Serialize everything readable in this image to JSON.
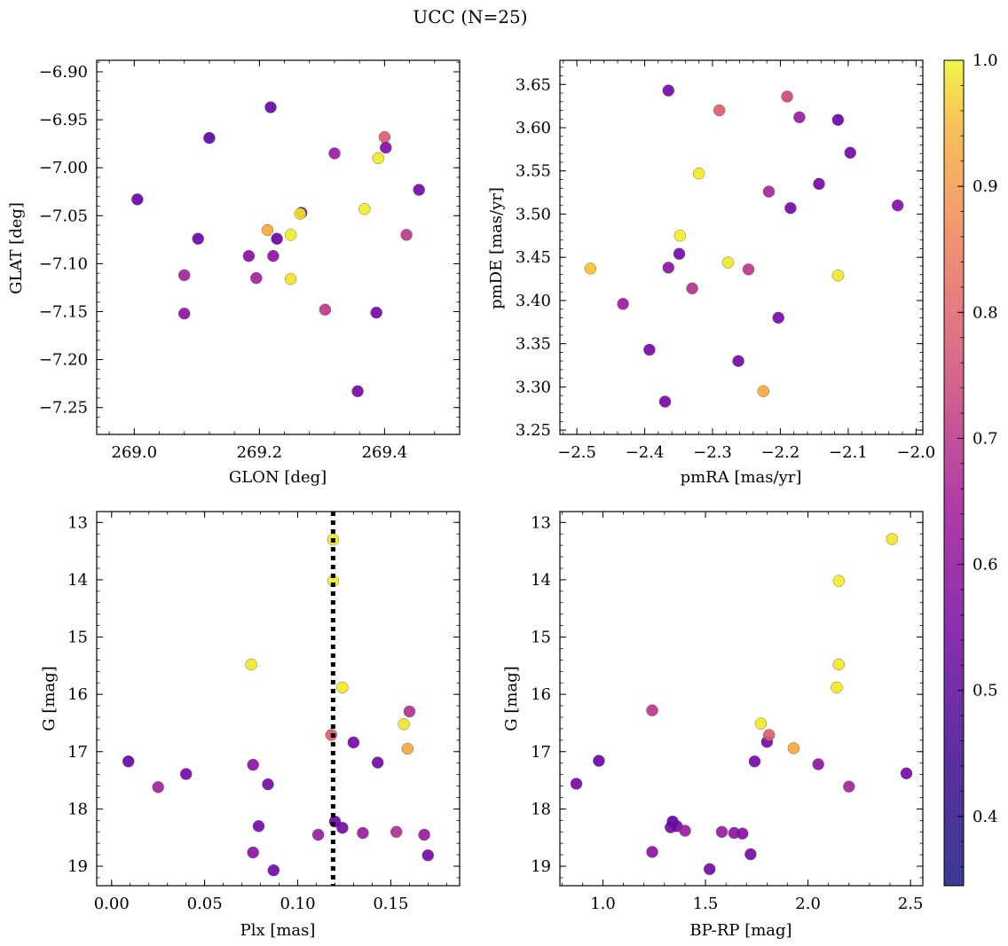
{
  "figure": {
    "title": "UCC (N=25)"
  },
  "colorbar": {
    "min": 0.345,
    "max": 1.0,
    "ticks": [
      {
        "v": 0.4,
        "label": "0.4"
      },
      {
        "v": 0.5,
        "label": "0.5"
      },
      {
        "v": 0.6,
        "label": "0.6"
      },
      {
        "v": 0.7,
        "label": "0.7"
      },
      {
        "v": 0.8,
        "label": "0.8"
      },
      {
        "v": 0.9,
        "label": "0.9"
      },
      {
        "v": 1.0,
        "label": "1.0"
      }
    ],
    "colormap": "plasma"
  },
  "chart_data": [
    {
      "type": "scatter",
      "xlabel": "GLON [deg]",
      "ylabel": "GLAT [deg]",
      "xlim": [
        268.94,
        269.52
      ],
      "ylim": [
        -7.278,
        -6.888
      ],
      "xticks": [
        {
          "v": 269.0,
          "label": "269.0"
        },
        {
          "v": 269.2,
          "label": "269.2"
        },
        {
          "v": 269.4,
          "label": "269.4"
        }
      ],
      "yticks": [
        {
          "v": -6.9,
          "label": "−6.90"
        },
        {
          "v": -6.95,
          "label": "−6.95"
        },
        {
          "v": -7.0,
          "label": "−7.00"
        },
        {
          "v": -7.05,
          "label": "−7.05"
        },
        {
          "v": -7.1,
          "label": "−7.10"
        },
        {
          "v": -7.15,
          "label": "−7.15"
        },
        {
          "v": -7.2,
          "label": "−7.20"
        },
        {
          "v": -7.25,
          "label": "−7.25"
        }
      ],
      "points": [
        {
          "x": 269.005,
          "y": -7.033,
          "c": 0.4
        },
        {
          "x": 269.12,
          "y": -6.969,
          "c": 0.38
        },
        {
          "x": 269.218,
          "y": -6.937,
          "c": 0.4
        },
        {
          "x": 269.102,
          "y": -7.074,
          "c": 0.4
        },
        {
          "x": 269.08,
          "y": -7.112,
          "c": 0.52
        },
        {
          "x": 269.08,
          "y": -7.152,
          "c": 0.48
        },
        {
          "x": 269.183,
          "y": -7.092,
          "c": 0.46
        },
        {
          "x": 269.195,
          "y": -7.115,
          "c": 0.52
        },
        {
          "x": 269.213,
          "y": -7.065,
          "c": 0.85
        },
        {
          "x": 269.228,
          "y": -7.074,
          "c": 0.4
        },
        {
          "x": 269.222,
          "y": -7.092,
          "c": 0.48
        },
        {
          "x": 269.25,
          "y": -7.07,
          "c": 0.98
        },
        {
          "x": 269.25,
          "y": -7.116,
          "c": 0.96
        },
        {
          "x": 269.267,
          "y": -7.047,
          "c": 0.4
        },
        {
          "x": 269.265,
          "y": -7.048,
          "c": 0.97
        },
        {
          "x": 269.305,
          "y": -7.148,
          "c": 0.58
        },
        {
          "x": 269.32,
          "y": -6.985,
          "c": 0.5
        },
        {
          "x": 269.357,
          "y": -7.233,
          "c": 0.42
        },
        {
          "x": 269.368,
          "y": -7.043,
          "c": 0.98
        },
        {
          "x": 269.387,
          "y": -7.151,
          "c": 0.42
        },
        {
          "x": 269.39,
          "y": -6.99,
          "c": 0.97
        },
        {
          "x": 269.4,
          "y": -6.968,
          "c": 0.68
        },
        {
          "x": 269.402,
          "y": -6.979,
          "c": 0.45
        },
        {
          "x": 269.435,
          "y": -7.07,
          "c": 0.58
        },
        {
          "x": 269.455,
          "y": -7.023,
          "c": 0.42
        }
      ]
    },
    {
      "type": "scatter",
      "xlabel": "pmRA [mas/yr]",
      "ylabel": "pmDE [mas/yr]",
      "xlim": [
        -2.525,
        -1.99
      ],
      "ylim": [
        3.245,
        3.678
      ],
      "xticks": [
        {
          "v": -2.5,
          "label": "−2.5"
        },
        {
          "v": -2.4,
          "label": "−2.4"
        },
        {
          "v": -2.3,
          "label": "−2.3"
        },
        {
          "v": -2.2,
          "label": "−2.2"
        },
        {
          "v": -2.1,
          "label": "−2.1"
        },
        {
          "v": -2.0,
          "label": "−2.0"
        }
      ],
      "yticks": [
        {
          "v": 3.25,
          "label": "3.25"
        },
        {
          "v": 3.3,
          "label": "3.30"
        },
        {
          "v": 3.35,
          "label": "3.35"
        },
        {
          "v": 3.4,
          "label": "3.40"
        },
        {
          "v": 3.45,
          "label": "3.45"
        },
        {
          "v": 3.5,
          "label": "3.50"
        },
        {
          "v": 3.55,
          "label": "3.55"
        },
        {
          "v": 3.6,
          "label": "3.60"
        },
        {
          "v": 3.65,
          "label": "3.65"
        }
      ],
      "points": [
        {
          "x": -2.48,
          "y": 3.437,
          "c": 0.9
        },
        {
          "x": -2.432,
          "y": 3.396,
          "c": 0.5
        },
        {
          "x": -2.393,
          "y": 3.343,
          "c": 0.42
        },
        {
          "x": -2.37,
          "y": 3.283,
          "c": 0.42
        },
        {
          "x": -2.365,
          "y": 3.643,
          "c": 0.42
        },
        {
          "x": -2.365,
          "y": 3.438,
          "c": 0.48
        },
        {
          "x": -2.348,
          "y": 3.475,
          "c": 0.98
        },
        {
          "x": -2.349,
          "y": 3.454,
          "c": 0.42
        },
        {
          "x": -2.33,
          "y": 3.414,
          "c": 0.56
        },
        {
          "x": -2.32,
          "y": 3.547,
          "c": 0.97
        },
        {
          "x": -2.29,
          "y": 3.62,
          "c": 0.68
        },
        {
          "x": -2.277,
          "y": 3.444,
          "c": 0.97
        },
        {
          "x": -2.262,
          "y": 3.33,
          "c": 0.42
        },
        {
          "x": -2.247,
          "y": 3.436,
          "c": 0.58
        },
        {
          "x": -2.225,
          "y": 3.295,
          "c": 0.85
        },
        {
          "x": -2.217,
          "y": 3.526,
          "c": 0.53
        },
        {
          "x": -2.203,
          "y": 3.38,
          "c": 0.43
        },
        {
          "x": -2.19,
          "y": 3.636,
          "c": 0.62
        },
        {
          "x": -2.185,
          "y": 3.507,
          "c": 0.42
        },
        {
          "x": -2.172,
          "y": 3.612,
          "c": 0.5
        },
        {
          "x": -2.143,
          "y": 3.535,
          "c": 0.42
        },
        {
          "x": -2.115,
          "y": 3.609,
          "c": 0.4
        },
        {
          "x": -2.115,
          "y": 3.429,
          "c": 0.97
        },
        {
          "x": -2.097,
          "y": 3.571,
          "c": 0.42
        },
        {
          "x": -2.027,
          "y": 3.51,
          "c": 0.45
        }
      ]
    },
    {
      "type": "scatter",
      "xlabel": "Plx [mas]",
      "ylabel": "G [mag]",
      "xlim": [
        -0.008,
        0.187
      ],
      "ylim": [
        19.34,
        12.81
      ],
      "xticks": [
        {
          "v": 0.0,
          "label": "0.00"
        },
        {
          "v": 0.05,
          "label": "0.05"
        },
        {
          "v": 0.1,
          "label": "0.10"
        },
        {
          "v": 0.15,
          "label": "0.15"
        }
      ],
      "yticks": [
        {
          "v": 13,
          "label": "13"
        },
        {
          "v": 14,
          "label": "14"
        },
        {
          "v": 15,
          "label": "15"
        },
        {
          "v": 16,
          "label": "16"
        },
        {
          "v": 17,
          "label": "17"
        },
        {
          "v": 18,
          "label": "18"
        },
        {
          "v": 19,
          "label": "19"
        }
      ],
      "vline": 0.119,
      "points": [
        {
          "x": 0.009,
          "y": 17.17,
          "c": 0.4
        },
        {
          "x": 0.025,
          "y": 17.62,
          "c": 0.52
        },
        {
          "x": 0.04,
          "y": 17.39,
          "c": 0.42
        },
        {
          "x": 0.075,
          "y": 15.48,
          "c": 0.97
        },
        {
          "x": 0.076,
          "y": 17.23,
          "c": 0.48
        },
        {
          "x": 0.076,
          "y": 18.76,
          "c": 0.48
        },
        {
          "x": 0.079,
          "y": 18.3,
          "c": 0.42
        },
        {
          "x": 0.084,
          "y": 17.57,
          "c": 0.42
        },
        {
          "x": 0.087,
          "y": 19.07,
          "c": 0.42
        },
        {
          "x": 0.111,
          "y": 18.45,
          "c": 0.5
        },
        {
          "x": 0.118,
          "y": 16.71,
          "c": 0.68
        },
        {
          "x": 0.119,
          "y": 13.3,
          "c": 0.97
        },
        {
          "x": 0.119,
          "y": 14.02,
          "c": 0.98
        },
        {
          "x": 0.12,
          "y": 18.22,
          "c": 0.4
        },
        {
          "x": 0.124,
          "y": 15.88,
          "c": 0.97
        },
        {
          "x": 0.124,
          "y": 18.33,
          "c": 0.42
        },
        {
          "x": 0.13,
          "y": 16.84,
          "c": 0.42
        },
        {
          "x": 0.135,
          "y": 18.42,
          "c": 0.5
        },
        {
          "x": 0.143,
          "y": 17.19,
          "c": 0.42
        },
        {
          "x": 0.153,
          "y": 18.4,
          "c": 0.55
        },
        {
          "x": 0.157,
          "y": 16.52,
          "c": 0.96
        },
        {
          "x": 0.159,
          "y": 16.95,
          "c": 0.85
        },
        {
          "x": 0.16,
          "y": 16.3,
          "c": 0.56
        },
        {
          "x": 0.168,
          "y": 18.45,
          "c": 0.5
        },
        {
          "x": 0.17,
          "y": 18.81,
          "c": 0.42
        }
      ]
    },
    {
      "type": "scatter",
      "xlabel": "BP-RP [mag]",
      "ylabel": "G [mag]",
      "xlim": [
        0.79,
        2.56
      ],
      "ylim": [
        19.34,
        12.81
      ],
      "xticks": [
        {
          "v": 1.0,
          "label": "1.0"
        },
        {
          "v": 1.5,
          "label": "1.5"
        },
        {
          "v": 2.0,
          "label": "2.0"
        },
        {
          "v": 2.5,
          "label": "2.5"
        }
      ],
      "yticks": [
        {
          "v": 13,
          "label": "13"
        },
        {
          "v": 14,
          "label": "14"
        },
        {
          "v": 15,
          "label": "15"
        },
        {
          "v": 16,
          "label": "16"
        },
        {
          "v": 17,
          "label": "17"
        },
        {
          "v": 18,
          "label": "18"
        },
        {
          "v": 19,
          "label": "19"
        }
      ],
      "points": [
        {
          "x": 0.87,
          "y": 17.56,
          "c": 0.42
        },
        {
          "x": 0.98,
          "y": 17.16,
          "c": 0.4
        },
        {
          "x": 1.24,
          "y": 16.28,
          "c": 0.58
        },
        {
          "x": 1.24,
          "y": 18.75,
          "c": 0.48
        },
        {
          "x": 1.33,
          "y": 18.32,
          "c": 0.42
        },
        {
          "x": 1.34,
          "y": 18.22,
          "c": 0.38
        },
        {
          "x": 1.36,
          "y": 18.3,
          "c": 0.42
        },
        {
          "x": 1.4,
          "y": 18.38,
          "c": 0.5
        },
        {
          "x": 1.52,
          "y": 19.05,
          "c": 0.42
        },
        {
          "x": 1.58,
          "y": 18.4,
          "c": 0.5
        },
        {
          "x": 1.64,
          "y": 18.42,
          "c": 0.48
        },
        {
          "x": 1.68,
          "y": 18.43,
          "c": 0.46
        },
        {
          "x": 1.72,
          "y": 18.79,
          "c": 0.42
        },
        {
          "x": 1.74,
          "y": 17.17,
          "c": 0.42
        },
        {
          "x": 1.77,
          "y": 16.51,
          "c": 0.97
        },
        {
          "x": 1.8,
          "y": 16.83,
          "c": 0.42
        },
        {
          "x": 1.81,
          "y": 16.71,
          "c": 0.68
        },
        {
          "x": 1.93,
          "y": 16.94,
          "c": 0.85
        },
        {
          "x": 2.05,
          "y": 17.22,
          "c": 0.48
        },
        {
          "x": 2.14,
          "y": 15.88,
          "c": 0.97
        },
        {
          "x": 2.15,
          "y": 14.02,
          "c": 0.98
        },
        {
          "x": 2.15,
          "y": 15.48,
          "c": 0.97
        },
        {
          "x": 2.2,
          "y": 17.61,
          "c": 0.52
        },
        {
          "x": 2.41,
          "y": 13.29,
          "c": 0.96
        },
        {
          "x": 2.48,
          "y": 17.38,
          "c": 0.42
        }
      ]
    }
  ]
}
